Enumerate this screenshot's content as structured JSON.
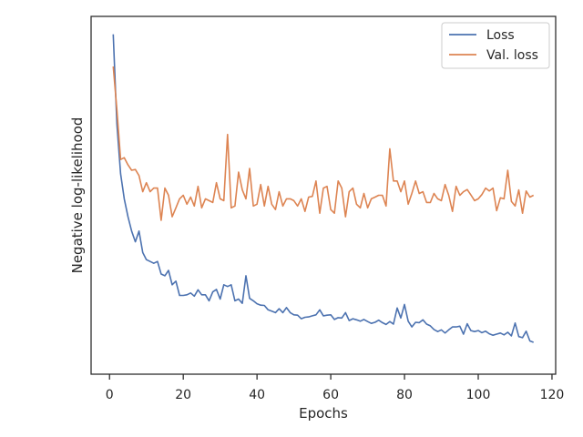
{
  "chart_data": {
    "type": "line",
    "xlabel": "Epochs",
    "ylabel": "Negative log-likelihood",
    "xlim": [
      -5,
      121
    ],
    "ylim": [
      0,
      1
    ],
    "xticks": [
      0,
      20,
      40,
      60,
      80,
      100,
      120
    ],
    "show_y_ticks": false,
    "grid": false,
    "legend_position": "top-right",
    "series": [
      {
        "name": "Loss",
        "color": "#4c72b0",
        "x": [
          1,
          2,
          3,
          4,
          5,
          6,
          7,
          8,
          9,
          10,
          11,
          12,
          13,
          14,
          15,
          16,
          17,
          18,
          19,
          20,
          21,
          22,
          23,
          24,
          25,
          26,
          27,
          28,
          29,
          30,
          31,
          32,
          33,
          34,
          35,
          36,
          37,
          38,
          39,
          40,
          41,
          42,
          43,
          44,
          45,
          46,
          47,
          48,
          49,
          50,
          51,
          52,
          53,
          54,
          55,
          56,
          57,
          58,
          59,
          60,
          61,
          62,
          63,
          64,
          65,
          66,
          67,
          68,
          69,
          70,
          71,
          72,
          73,
          74,
          75,
          76,
          77,
          78,
          79,
          80,
          81,
          82,
          83,
          84,
          85,
          86,
          87,
          88,
          89,
          90,
          91,
          92,
          93,
          94,
          95,
          96,
          97,
          98,
          99,
          100,
          101,
          102,
          103,
          104,
          105,
          106,
          107,
          108,
          109,
          110,
          111,
          112,
          113,
          114,
          115
        ],
        "y": [
          0.95,
          0.7,
          0.56,
          0.49,
          0.44,
          0.4,
          0.37,
          0.4,
          0.34,
          0.32,
          0.315,
          0.31,
          0.315,
          0.28,
          0.275,
          0.29,
          0.25,
          0.26,
          0.22,
          0.22,
          0.222,
          0.227,
          0.218,
          0.236,
          0.222,
          0.222,
          0.205,
          0.23,
          0.237,
          0.21,
          0.25,
          0.245,
          0.25,
          0.205,
          0.21,
          0.198,
          0.275,
          0.212,
          0.205,
          0.197,
          0.193,
          0.192,
          0.18,
          0.176,
          0.172,
          0.183,
          0.172,
          0.186,
          0.172,
          0.166,
          0.165,
          0.155,
          0.159,
          0.16,
          0.163,
          0.166,
          0.18,
          0.163,
          0.165,
          0.166,
          0.153,
          0.158,
          0.157,
          0.172,
          0.15,
          0.155,
          0.152,
          0.148,
          0.153,
          0.147,
          0.142,
          0.145,
          0.151,
          0.144,
          0.139,
          0.147,
          0.14,
          0.185,
          0.157,
          0.195,
          0.148,
          0.132,
          0.145,
          0.144,
          0.152,
          0.14,
          0.135,
          0.125,
          0.119,
          0.124,
          0.115,
          0.124,
          0.132,
          0.132,
          0.134,
          0.112,
          0.141,
          0.122,
          0.119,
          0.122,
          0.116,
          0.12,
          0.113,
          0.109,
          0.112,
          0.115,
          0.11,
          0.117,
          0.107,
          0.143,
          0.105,
          0.102,
          0.12,
          0.093,
          0.089
        ]
      },
      {
        "name": "Val. loss",
        "color": "#dd8452",
        "x": [
          1,
          2,
          3,
          4,
          5,
          6,
          7,
          8,
          9,
          10,
          11,
          12,
          13,
          14,
          15,
          16,
          17,
          18,
          19,
          20,
          21,
          22,
          23,
          24,
          25,
          26,
          27,
          28,
          29,
          30,
          31,
          32,
          33,
          34,
          35,
          36,
          37,
          38,
          39,
          40,
          41,
          42,
          43,
          44,
          45,
          46,
          47,
          48,
          49,
          50,
          51,
          52,
          53,
          54,
          55,
          56,
          57,
          58,
          59,
          60,
          61,
          62,
          63,
          64,
          65,
          66,
          67,
          68,
          69,
          70,
          71,
          72,
          73,
          74,
          75,
          76,
          77,
          78,
          79,
          80,
          81,
          82,
          83,
          84,
          85,
          86,
          87,
          88,
          89,
          90,
          91,
          92,
          93,
          94,
          95,
          96,
          97,
          98,
          99,
          100,
          101,
          102,
          103,
          104,
          105,
          106,
          107,
          108,
          109,
          110,
          111,
          112,
          113,
          114,
          115
        ],
        "y": [
          0.86,
          0.74,
          0.6,
          0.605,
          0.585,
          0.57,
          0.572,
          0.555,
          0.51,
          0.535,
          0.51,
          0.52,
          0.52,
          0.43,
          0.52,
          0.5,
          0.44,
          0.465,
          0.49,
          0.5,
          0.475,
          0.495,
          0.47,
          0.525,
          0.465,
          0.49,
          0.485,
          0.48,
          0.535,
          0.49,
          0.485,
          0.67,
          0.465,
          0.47,
          0.565,
          0.515,
          0.49,
          0.575,
          0.47,
          0.475,
          0.53,
          0.47,
          0.525,
          0.475,
          0.46,
          0.51,
          0.47,
          0.49,
          0.49,
          0.485,
          0.47,
          0.49,
          0.455,
          0.495,
          0.497,
          0.54,
          0.45,
          0.52,
          0.525,
          0.46,
          0.45,
          0.54,
          0.52,
          0.44,
          0.51,
          0.52,
          0.475,
          0.465,
          0.505,
          0.465,
          0.49,
          0.495,
          0.5,
          0.5,
          0.47,
          0.63,
          0.54,
          0.54,
          0.51,
          0.54,
          0.475,
          0.505,
          0.54,
          0.505,
          0.51,
          0.48,
          0.48,
          0.505,
          0.49,
          0.485,
          0.53,
          0.5,
          0.455,
          0.525,
          0.5,
          0.51,
          0.516,
          0.501,
          0.485,
          0.49,
          0.502,
          0.52,
          0.512,
          0.52,
          0.457,
          0.493,
          0.49,
          0.57,
          0.483,
          0.47,
          0.515,
          0.45,
          0.512,
          0.495,
          0.5
        ]
      }
    ]
  }
}
